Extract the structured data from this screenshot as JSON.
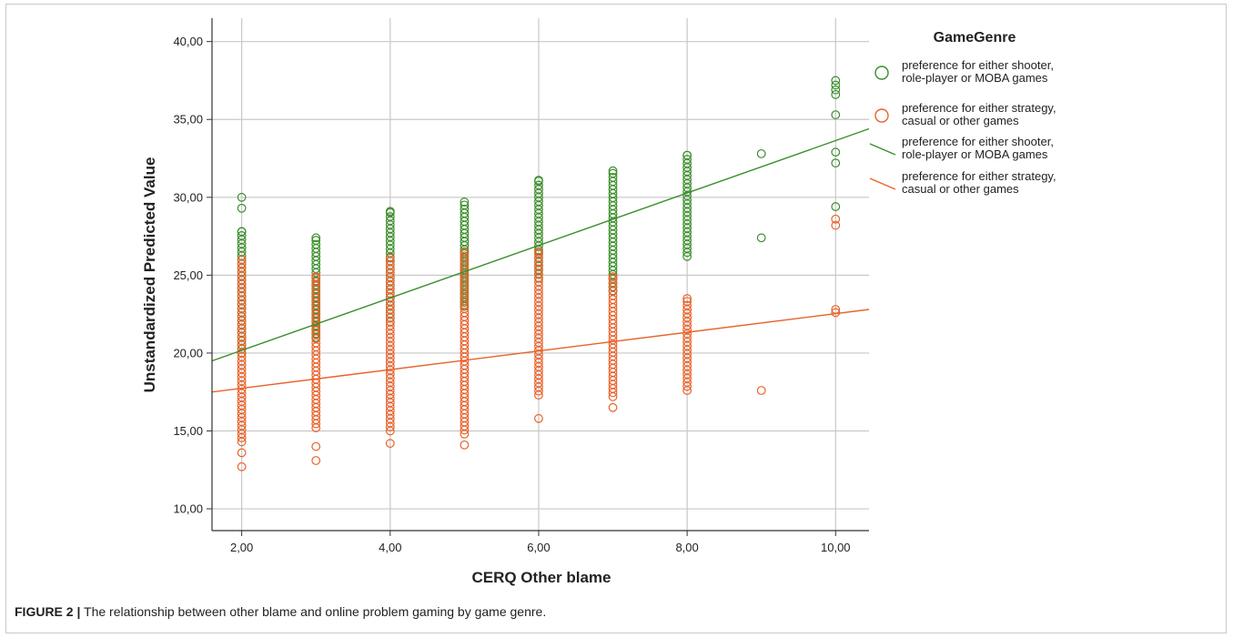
{
  "chart_data": {
    "type": "scatter",
    "xlabel": "CERQ Other blame",
    "ylabel": "Unstandardized Predicted Value",
    "xlim": [
      1.6,
      10.45
    ],
    "ylim": [
      8.6,
      41.5
    ],
    "x_ticks": [
      "2,00",
      "4,00",
      "6,00",
      "8,00",
      "10,00"
    ],
    "y_ticks": [
      "10,00",
      "15,00",
      "20,00",
      "25,00",
      "30,00",
      "35,00",
      "40,00"
    ],
    "grid": true,
    "legend": {
      "title": "GameGenre",
      "placement": "right",
      "entries": [
        {
          "kind": "marker",
          "label_lines": [
            "preference for either shooter,",
            "role-player or MOBA games"
          ]
        },
        {
          "kind": "marker",
          "label_lines": [
            "preference for either strategy,",
            "casual or other games"
          ]
        },
        {
          "kind": "line",
          "label_lines": [
            "preference for either shooter,",
            "role-player or MOBA games"
          ]
        },
        {
          "kind": "line",
          "label_lines": [
            "preference for either strategy,",
            "casual or other games"
          ]
        }
      ]
    },
    "series": [
      {
        "color": "#3a8e2a",
        "fit_line": {
          "x": [
            1.6,
            10.45
          ],
          "y": [
            19.5,
            34.4
          ]
        },
        "columns": [
          {
            "x": 2,
            "min": 20.0,
            "max": 27.8,
            "extra": [
              29.3,
              30.0
            ]
          },
          {
            "x": 3,
            "min": 21.0,
            "max": 27.4
          },
          {
            "x": 4,
            "min": 22.0,
            "max": 29.1
          },
          {
            "x": 5,
            "min": 23.0,
            "max": 29.7
          },
          {
            "x": 6,
            "min": 24.8,
            "max": 31.1
          },
          {
            "x": 7,
            "min": 24.0,
            "max": 31.7
          },
          {
            "x": 8,
            "min": 26.2,
            "max": 32.7
          },
          {
            "x": 9,
            "points": [
              27.4,
              32.8
            ]
          },
          {
            "x": 10,
            "points": [
              29.4,
              32.2,
              32.9,
              35.3,
              36.6,
              36.9,
              37.2,
              37.5
            ]
          }
        ]
      },
      {
        "color": "#e8622a",
        "fit_line": {
          "x": [
            1.6,
            10.45
          ],
          "y": [
            17.5,
            22.8
          ]
        },
        "columns": [
          {
            "x": 2,
            "min": 14.3,
            "max": 26.0,
            "extra": [
              12.7,
              13.6
            ]
          },
          {
            "x": 3,
            "min": 15.2,
            "max": 24.9,
            "extra": [
              13.1,
              14.0
            ]
          },
          {
            "x": 4,
            "min": 15.0,
            "max": 26.1,
            "extra": [
              14.2
            ]
          },
          {
            "x": 5,
            "min": 14.8,
            "max": 26.5,
            "extra": [
              14.1
            ]
          },
          {
            "x": 6,
            "min": 17.3,
            "max": 26.5,
            "extra": [
              15.8
            ]
          },
          {
            "x": 7,
            "min": 17.2,
            "max": 24.9,
            "extra": [
              16.5
            ]
          },
          {
            "x": 8,
            "min": 17.6,
            "max": 23.5
          },
          {
            "x": 9,
            "points": [
              17.6
            ]
          },
          {
            "x": 10,
            "points": [
              22.6,
              22.8,
              28.2,
              28.6
            ]
          }
        ]
      }
    ]
  },
  "caption": {
    "lead": "FIGURE 2 |",
    "text": " The relationship between other blame and online problem gaming by game genre."
  }
}
